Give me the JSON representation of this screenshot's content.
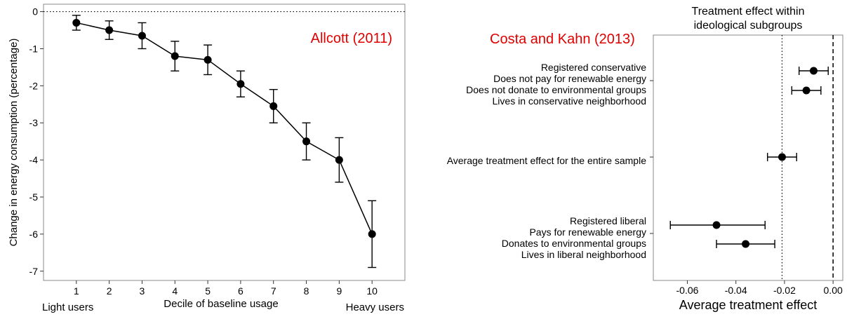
{
  "chart_data": [
    {
      "type": "line",
      "title": "",
      "annotation": "Allcott (2011)",
      "annotation_color": "#e00000",
      "xlabel": "Decile of baseline usage",
      "ylabel": "Change in energy consumption (percentage)",
      "x_left_note": "Light users",
      "x_right_note": "Heavy users",
      "xlim": [
        0,
        11
      ],
      "ylim": [
        -7.25,
        0.2
      ],
      "x_ticks": [
        "1",
        "2",
        "3",
        "4",
        "5",
        "6",
        "7",
        "8",
        "9",
        "10"
      ],
      "y_ticks": [
        "0",
        "-1",
        "-2",
        "-3",
        "-4",
        "-5",
        "-6",
        "-7"
      ],
      "reference_line": {
        "y": 0,
        "style": "dotted"
      },
      "grid": false,
      "series": [
        {
          "x": [
            1,
            2,
            3,
            4,
            5,
            6,
            7,
            8,
            9,
            10
          ],
          "y": [
            -0.3,
            -0.5,
            -0.65,
            -1.2,
            -1.3,
            -1.95,
            -2.55,
            -3.5,
            -4.0,
            -6.0
          ],
          "lower": [
            -0.5,
            -0.75,
            -1.0,
            -1.6,
            -1.7,
            -2.3,
            -3.0,
            -4.0,
            -4.6,
            -6.9
          ],
          "upper": [
            -0.1,
            -0.25,
            -0.3,
            -0.8,
            -0.9,
            -1.6,
            -2.1,
            -3.0,
            -3.4,
            -5.1
          ]
        }
      ]
    },
    {
      "type": "scatter",
      "title": "Treatment effect within\nideological subgroups",
      "annotation": "Costa and Kahn (2013)",
      "annotation_color": "#e00000",
      "xlabel": "Average treatment effect",
      "ylabel": "",
      "xlim": [
        -0.074,
        0.004
      ],
      "x_ticks": [
        "-0.06",
        "-0.04",
        "-0.02",
        "0.00"
      ],
      "reference_lines": [
        {
          "x": 0.0,
          "style": "dashed"
        },
        {
          "x": -0.021,
          "style": "dotted"
        }
      ],
      "grid": false,
      "groups": [
        {
          "labels": [
            "Registered conservative",
            "Does not pay for renewable energy",
            "Does not donate to environmental groups",
            "Lives in conservative neighborhood"
          ],
          "points": [
            {
              "estimate": -0.008,
              "lower": -0.014,
              "upper": -0.002
            },
            {
              "estimate": -0.011,
              "lower": -0.017,
              "upper": -0.005
            }
          ]
        },
        {
          "labels": [
            "Average treatment effect for the entire sample"
          ],
          "points": [
            {
              "estimate": -0.021,
              "lower": -0.027,
              "upper": -0.015
            }
          ]
        },
        {
          "labels": [
            "Registered liberal",
            "Pays for renewable energy",
            "Donates to environmental groups",
            "Lives in liberal neighborhood"
          ],
          "points": [
            {
              "estimate": -0.048,
              "lower": -0.067,
              "upper": -0.028
            },
            {
              "estimate": -0.036,
              "lower": -0.048,
              "upper": -0.024
            }
          ]
        }
      ]
    }
  ]
}
